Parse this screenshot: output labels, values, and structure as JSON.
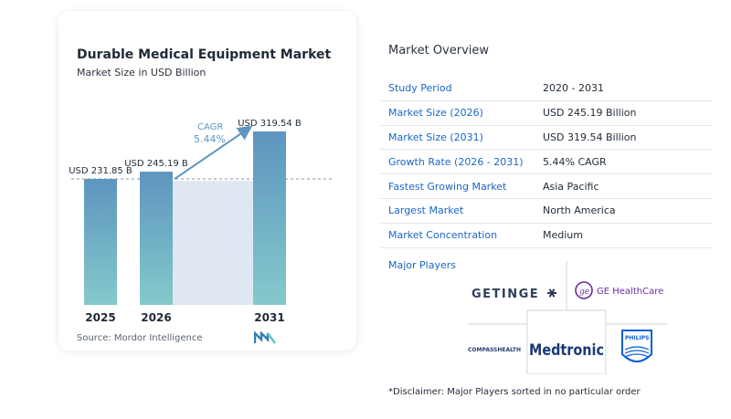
{
  "chart": {
    "title": "Durable Medical Equipment Market",
    "subtitle": "Market Size in USD Billion",
    "source": "Source:  Mordor Intelligence",
    "cagr_label": "CAGR",
    "cagr_value": "5.44%"
  },
  "chart_data": {
    "type": "bar",
    "categories": [
      "2025",
      "2026",
      "2031"
    ],
    "values": [
      231.85,
      245.19,
      319.54
    ],
    "data_labels": [
      "USD 231.85 B",
      "USD 245.19 B",
      "USD 319.54 B"
    ],
    "title": "Durable Medical Equipment Market",
    "subtitle": "Market Size in USD Billion",
    "annotation": "CAGR 5.44%",
    "ylim": [
      0,
      330
    ],
    "grid": false
  },
  "overview": {
    "title": "Market Overview",
    "rows": [
      {
        "label": "Study Period",
        "value": "2020 - 2031"
      },
      {
        "label": "Market Size (2026)",
        "value": "USD 245.19 Billion"
      },
      {
        "label": "Market Size (2031)",
        "value": "USD 319.54 Billion"
      },
      {
        "label": "Growth Rate (2026 - 2031)",
        "value": "5.44% CAGR"
      },
      {
        "label": "Fastest Growing Market",
        "value": "Asia Pacific"
      },
      {
        "label": "Largest Market",
        "value": "North America"
      },
      {
        "label": "Market Concentration",
        "value": "Medium"
      }
    ]
  },
  "players": {
    "title": "Major Players",
    "logos": [
      "GETINGE",
      "GE HealthCare",
      "COMPASSHEALTH",
      "Medtronic",
      "PHILIPS"
    ]
  },
  "disclaimer": "*Disclaimer: Major Players sorted in no particular order",
  "colors": {
    "bar_top": "#5d95bf",
    "bar_bottom": "#85c9cb",
    "accent": "#1b66c9",
    "highlight": "#dfe8f2"
  }
}
